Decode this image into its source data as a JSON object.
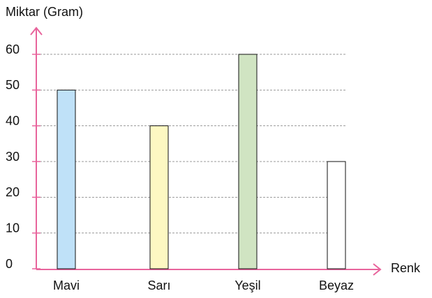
{
  "chart_data": {
    "type": "bar",
    "ylabel": "Miktar (Gram)",
    "xlabel": "Renk",
    "categories": [
      "Mavi",
      "Sarı",
      "Yeşil",
      "Beyaz"
    ],
    "values": [
      50,
      40,
      60,
      30
    ],
    "colors": [
      "#bfe1f8",
      "#fdf8c2",
      "#d0e4c2",
      "#ffffff"
    ],
    "ylim": [
      0,
      60
    ],
    "yticks": [
      0,
      10,
      20,
      30,
      40,
      50,
      60
    ],
    "grid": true
  }
}
